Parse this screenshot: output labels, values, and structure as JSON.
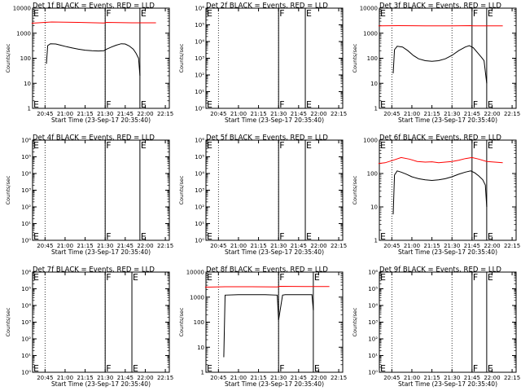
{
  "figure": {
    "x_tick_labels": [
      "20:45",
      "21:00",
      "21:15",
      "21:30",
      "21:45",
      "22:00",
      "22:15"
    ],
    "x_label": "Start Time (23-Sep-17 20:35:40)",
    "y_label": "Counts/sec"
  },
  "chart_data": [
    {
      "type": "line",
      "title": "Det 1f BLACK = Events, RED = LLD",
      "ylim": [
        1,
        10000
      ],
      "log_y": true,
      "y_tick_labels": [
        "1",
        "10",
        "100",
        "1000",
        "10000"
      ],
      "event_lines": [
        {
          "time": "21:30",
          "label": "F"
        },
        {
          "time": "21:56",
          "label": "E"
        }
      ],
      "series": [
        {
          "color": "#000000",
          "x": [
            "20:46",
            "20:47",
            "20:49",
            "20:53",
            "20:57",
            "21:01",
            "21:05",
            "21:10",
            "21:15",
            "21:20",
            "21:25",
            "21:29",
            "21:31",
            "21:34",
            "21:38",
            "21:42",
            "21:45",
            "21:48",
            "21:51",
            "21:53",
            "21:55",
            "21:56"
          ],
          "y": [
            60,
            320,
            380,
            370,
            330,
            290,
            260,
            230,
            210,
            200,
            195,
            200,
            230,
            270,
            330,
            380,
            370,
            310,
            230,
            160,
            100,
            20
          ]
        },
        {
          "color": "#ff0000",
          "x": [
            "20:35",
            "20:50",
            "21:10",
            "21:29",
            "21:31",
            "21:50",
            "22:08"
          ],
          "y": [
            2500,
            2800,
            2700,
            2550,
            2700,
            2600,
            2600
          ]
        }
      ]
    },
    {
      "type": "line",
      "title": "Det 2f BLACK = Events, RED = LLD",
      "ylim": [
        1,
        1000000
      ],
      "log_y": true,
      "y_tick_labels": [
        "10⁰",
        "10¹",
        "10²",
        "10³",
        "10⁴",
        "10⁵",
        "10⁶"
      ],
      "event_lines": [
        {
          "time": "21:30",
          "label": "F"
        },
        {
          "time": "21:50",
          "label": "E"
        }
      ],
      "series": []
    },
    {
      "type": "line",
      "title": "Det 3f BLACK = Events, RED = LLD",
      "ylim": [
        1,
        10000
      ],
      "log_y": true,
      "y_tick_labels": [
        "1",
        "10",
        "100",
        "1000",
        "10000"
      ],
      "event_lines": [
        {
          "time": "21:45",
          "label": "F"
        },
        {
          "time": "21:56",
          "label": "E"
        }
      ],
      "series": [
        {
          "color": "#000000",
          "x": [
            "20:46",
            "20:47",
            "20:49",
            "20:53",
            "20:57",
            "21:01",
            "21:05",
            "21:10",
            "21:15",
            "21:20",
            "21:25",
            "21:30",
            "21:35",
            "21:40",
            "21:43",
            "21:46",
            "21:49",
            "21:52",
            "21:54",
            "21:56"
          ],
          "y": [
            25,
            220,
            300,
            280,
            200,
            130,
            95,
            80,
            75,
            80,
            95,
            130,
            200,
            280,
            320,
            260,
            170,
            110,
            80,
            10
          ]
        },
        {
          "color": "#ff0000",
          "x": [
            "20:35",
            "20:50",
            "21:10",
            "21:30",
            "21:44",
            "21:46",
            "22:08"
          ],
          "y": [
            1950,
            2000,
            1950,
            1950,
            2000,
            1950,
            1950
          ]
        }
      ]
    },
    {
      "type": "line",
      "title": "Det 4f BLACK = Events, RED = LLD",
      "ylim": [
        1,
        1000000
      ],
      "log_y": true,
      "y_tick_labels": [
        "10⁰",
        "10¹",
        "10²",
        "10³",
        "10⁴",
        "10⁵",
        "10⁶"
      ],
      "event_lines": [
        {
          "time": "21:30",
          "label": "F"
        },
        {
          "time": "21:56",
          "label": "E"
        }
      ],
      "series": []
    },
    {
      "type": "line",
      "title": "Det 5f BLACK = Events, RED = LLD",
      "ylim": [
        1,
        1000000
      ],
      "log_y": true,
      "y_tick_labels": [
        "10⁰",
        "10¹",
        "10²",
        "10³",
        "10⁴",
        "10⁵",
        "10⁶"
      ],
      "event_lines": [
        {
          "time": "21:30",
          "label": "F"
        },
        {
          "time": "21:50",
          "label": "E"
        }
      ],
      "series": []
    },
    {
      "type": "line",
      "title": "Det 6f BLACK = Events, RED = LLD",
      "ylim": [
        1,
        1000
      ],
      "log_y": true,
      "y_tick_labels": [
        "1",
        "10",
        "100",
        "1000"
      ],
      "event_lines": [
        {
          "time": "21:45",
          "label": "F"
        },
        {
          "time": "21:56",
          "label": "E"
        }
      ],
      "series": [
        {
          "color": "#000000",
          "x": [
            "20:46",
            "20:47",
            "20:49",
            "20:52",
            "20:56",
            "21:00",
            "21:05",
            "21:10",
            "21:15",
            "21:20",
            "21:25",
            "21:30",
            "21:35",
            "21:40",
            "21:44",
            "21:47",
            "21:50",
            "21:53",
            "21:55",
            "21:56"
          ],
          "y": [
            6,
            90,
            120,
            110,
            95,
            80,
            70,
            65,
            62,
            65,
            70,
            80,
            95,
            110,
            120,
            105,
            85,
            65,
            45,
            10
          ]
        },
        {
          "color": "#ff0000",
          "x": [
            "20:35",
            "20:40",
            "20:46",
            "20:52",
            "20:58",
            "21:04",
            "21:10",
            "21:15",
            "21:20",
            "21:25",
            "21:30",
            "21:35",
            "21:40",
            "21:45",
            "21:50",
            "21:56",
            "22:02",
            "22:08"
          ],
          "y": [
            200,
            210,
            250,
            300,
            270,
            230,
            220,
            225,
            210,
            220,
            230,
            250,
            280,
            300,
            270,
            230,
            220,
            210
          ]
        }
      ]
    },
    {
      "type": "line",
      "title": "Det 7f BLACK = Events, RED = LLD",
      "ylim": [
        1,
        1000000
      ],
      "log_y": true,
      "y_tick_labels": [
        "10⁰",
        "10¹",
        "10²",
        "10³",
        "10⁴",
        "10⁵",
        "10⁶"
      ],
      "event_lines": [
        {
          "time": "21:30",
          "label": "F"
        },
        {
          "time": "21:50",
          "label": "E"
        }
      ],
      "series": []
    },
    {
      "type": "line",
      "title": "Det 8f BLACK = Events, RED = LLD",
      "ylim": [
        1,
        10000
      ],
      "log_y": true,
      "y_tick_labels": [
        "1",
        "10",
        "100",
        "1000",
        "10000"
      ],
      "event_lines": [
        {
          "time": "21:30",
          "label": "F"
        },
        {
          "time": "21:56",
          "label": "E"
        }
      ],
      "series": [
        {
          "color": "#000000",
          "x": [
            "20:49",
            "20:50",
            "21:00",
            "21:10",
            "21:20",
            "21:29",
            "21:30",
            "21:33",
            "21:35",
            "21:45",
            "21:55",
            "21:56"
          ],
          "y": [
            4,
            1200,
            1250,
            1250,
            1250,
            1200,
            120,
            1200,
            1250,
            1250,
            1250,
            300
          ]
        },
        {
          "color": "#ff0000",
          "x": [
            "20:35",
            "20:50",
            "21:10",
            "21:29",
            "21:31",
            "21:50",
            "22:08"
          ],
          "y": [
            2500,
            2600,
            2600,
            2550,
            2700,
            2650,
            2650
          ]
        }
      ]
    },
    {
      "type": "line",
      "title": "Det 9f BLACK = Events, RED = LLD",
      "ylim": [
        1,
        1000000
      ],
      "log_y": true,
      "y_tick_labels": [
        "10⁰",
        "10¹",
        "10²",
        "10³",
        "10⁴",
        "10⁵",
        "10⁶"
      ],
      "event_lines": [
        {
          "time": "21:45",
          "label": "F"
        },
        {
          "time": "21:56",
          "label": "E"
        }
      ],
      "series": []
    }
  ]
}
